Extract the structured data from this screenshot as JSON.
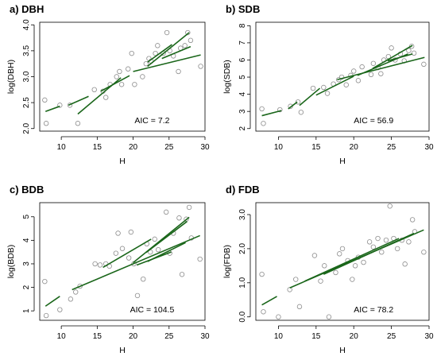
{
  "chart_data": [
    {
      "type": "scatter",
      "title": "a) DBH",
      "xlabel": "H",
      "ylabel": "log(DBH)",
      "xlim": [
        7,
        30
      ],
      "ylim": [
        1.95,
        4.05
      ],
      "xticks": [
        10,
        15,
        20,
        25,
        30
      ],
      "yticks": [
        "2.0",
        "2.5",
        "3.0",
        "3.5",
        "4.0"
      ],
      "annotation": "AIC = 7.2",
      "colors": {
        "points": "#8c8c8c",
        "fit_lines": "#1a661a"
      },
      "points": [
        [
          7.7,
          2.55
        ],
        [
          7.9,
          2.1
        ],
        [
          9.8,
          2.45
        ],
        [
          11.2,
          2.45
        ],
        [
          12.3,
          2.1
        ],
        [
          14.6,
          2.75
        ],
        [
          15.8,
          2.72
        ],
        [
          16.2,
          2.6
        ],
        [
          16.8,
          2.85
        ],
        [
          17.7,
          3.0
        ],
        [
          18.1,
          3.1
        ],
        [
          18.4,
          2.85
        ],
        [
          19.3,
          3.15
        ],
        [
          19.8,
          3.45
        ],
        [
          20.2,
          2.85
        ],
        [
          21.3,
          3.0
        ],
        [
          21.8,
          3.25
        ],
        [
          22.2,
          3.35
        ],
        [
          22.5,
          3.3
        ],
        [
          23.1,
          3.45
        ],
        [
          23.4,
          3.6
        ],
        [
          24.2,
          3.45
        ],
        [
          24.7,
          3.85
        ],
        [
          25.1,
          3.5
        ],
        [
          25.6,
          3.4
        ],
        [
          26.3,
          3.1
        ],
        [
          26.6,
          3.55
        ],
        [
          27.2,
          3.6
        ],
        [
          27.6,
          3.85
        ],
        [
          28.0,
          3.7
        ],
        [
          29.4,
          3.2
        ]
      ],
      "fit_lines": [
        [
          [
            7.8,
            2.33
          ],
          [
            9.8,
            2.43
          ]
        ],
        [
          [
            11.0,
            2.45
          ],
          [
            13.8,
            2.62
          ]
        ],
        [
          [
            12.3,
            2.28
          ],
          [
            18.3,
            2.98
          ]
        ],
        [
          [
            15.5,
            2.72
          ],
          [
            19.5,
            3.02
          ]
        ],
        [
          [
            20.0,
            3.1
          ],
          [
            29.4,
            3.42
          ]
        ],
        [
          [
            22.0,
            3.2
          ],
          [
            27.8,
            3.85
          ]
        ],
        [
          [
            22.0,
            3.28
          ],
          [
            25.4,
            3.62
          ]
        ],
        [
          [
            24.0,
            3.35
          ],
          [
            28.0,
            3.58
          ]
        ]
      ]
    },
    {
      "type": "scatter",
      "title": "b) SDB",
      "xlabel": "H",
      "ylabel": "log(SDB)",
      "xlim": [
        7,
        30
      ],
      "ylim": [
        1.85,
        8.2
      ],
      "xticks": [
        10,
        15,
        20,
        25,
        30
      ],
      "yticks": [
        "2",
        "3",
        "4",
        "5",
        "6",
        "7",
        "8"
      ],
      "annotation": "AIC = 56.9",
      "colors": {
        "points": "#8c8c8c",
        "fit_lines": "#1a661a"
      },
      "points": [
        [
          7.8,
          3.15
        ],
        [
          8.0,
          2.3
        ],
        [
          10.2,
          3.1
        ],
        [
          11.6,
          3.3
        ],
        [
          12.6,
          3.55
        ],
        [
          13.0,
          2.95
        ],
        [
          14.6,
          4.35
        ],
        [
          16.0,
          4.4
        ],
        [
          16.5,
          4.05
        ],
        [
          17.3,
          4.6
        ],
        [
          18.0,
          4.85
        ],
        [
          18.4,
          5.0
        ],
        [
          19.0,
          4.55
        ],
        [
          19.6,
          5.1
        ],
        [
          20.0,
          5.35
        ],
        [
          20.6,
          4.8
        ],
        [
          21.1,
          5.6
        ],
        [
          22.3,
          5.15
        ],
        [
          22.6,
          5.8
        ],
        [
          23.2,
          5.55
        ],
        [
          23.6,
          5.2
        ],
        [
          24.0,
          6.0
        ],
        [
          24.6,
          6.2
        ],
        [
          25.0,
          6.7
        ],
        [
          25.5,
          6.0
        ],
        [
          26.2,
          6.35
        ],
        [
          26.7,
          5.95
        ],
        [
          27.3,
          6.55
        ],
        [
          27.7,
          6.8
        ],
        [
          28.0,
          6.4
        ],
        [
          29.3,
          5.75
        ]
      ],
      "fit_lines": [
        [
          [
            7.8,
            2.75
          ],
          [
            10.4,
            3.05
          ]
        ],
        [
          [
            11.3,
            3.15
          ],
          [
            12.5,
            3.55
          ]
        ],
        [
          [
            12.8,
            3.35
          ],
          [
            15.5,
            4.35
          ]
        ],
        [
          [
            15.0,
            3.95
          ],
          [
            20.0,
            5.05
          ]
        ],
        [
          [
            17.8,
            4.85
          ],
          [
            29.4,
            6.15
          ]
        ],
        [
          [
            20.5,
            5.1
          ],
          [
            27.2,
            6.35
          ]
        ],
        [
          [
            22.5,
            5.5
          ],
          [
            27.8,
            6.85
          ]
        ],
        [
          [
            24.5,
            5.95
          ],
          [
            27.8,
            6.35
          ]
        ]
      ]
    },
    {
      "type": "scatter",
      "title": "c) BDB",
      "xlabel": "H",
      "ylabel": "log(BDB)",
      "xlim": [
        7,
        30
      ],
      "ylim": [
        0.6,
        5.6
      ],
      "xticks": [
        10,
        15,
        20,
        25,
        30
      ],
      "yticks": [
        "1",
        "2",
        "3",
        "4",
        "5"
      ],
      "annotation": "AIC = 104.5",
      "colors": {
        "points": "#8c8c8c",
        "fit_lines": "#1a661a"
      },
      "points": [
        [
          7.7,
          2.25
        ],
        [
          7.9,
          0.8
        ],
        [
          9.8,
          1.05
        ],
        [
          11.3,
          1.5
        ],
        [
          12.0,
          1.8
        ],
        [
          12.6,
          2.05
        ],
        [
          14.7,
          3.0
        ],
        [
          15.4,
          2.95
        ],
        [
          16.2,
          3.0
        ],
        [
          16.7,
          2.9
        ],
        [
          17.6,
          3.45
        ],
        [
          17.9,
          4.3
        ],
        [
          18.5,
          3.65
        ],
        [
          19.4,
          3.25
        ],
        [
          19.7,
          4.35
        ],
        [
          20.1,
          3.0
        ],
        [
          20.6,
          1.65
        ],
        [
          21.4,
          2.35
        ],
        [
          21.9,
          3.85
        ],
        [
          22.4,
          3.5
        ],
        [
          23.0,
          4.05
        ],
        [
          23.5,
          3.6
        ],
        [
          24.6,
          5.2
        ],
        [
          25.1,
          3.45
        ],
        [
          25.6,
          4.3
        ],
        [
          26.4,
          4.95
        ],
        [
          26.8,
          2.55
        ],
        [
          27.4,
          4.9
        ],
        [
          27.8,
          5.4
        ],
        [
          28.1,
          4.1
        ],
        [
          29.3,
          3.2
        ]
      ],
      "fit_lines": [
        [
          [
            7.8,
            1.2
          ],
          [
            9.8,
            1.62
          ]
        ],
        [
          [
            11.5,
            1.9
          ],
          [
            29.3,
            4.2
          ]
        ],
        [
          [
            15.8,
            2.85
          ],
          [
            22.5,
            4.05
          ]
        ],
        [
          [
            20.0,
            3.05
          ],
          [
            27.8,
            4.98
          ]
        ],
        [
          [
            21.8,
            3.48
          ],
          [
            27.5,
            4.8
          ]
        ],
        [
          [
            22.0,
            3.1
          ],
          [
            27.3,
            3.9
          ]
        ],
        [
          [
            20.5,
            2.95
          ],
          [
            25.3,
            3.5
          ]
        ]
      ]
    },
    {
      "type": "scatter",
      "title": "d) FDB",
      "xlabel": "H",
      "ylabel": "log(FDB)",
      "xlim": [
        7,
        30
      ],
      "ylim": [
        -0.1,
        3.35
      ],
      "xticks": [
        10,
        15,
        20,
        25,
        30
      ],
      "yticks": [
        "0.0",
        "1.0",
        "2.0",
        "3.0"
      ],
      "annotation": "AIC = 78.2",
      "colors": {
        "points": "#8c8c8c",
        "fit_lines": "#1a661a"
      },
      "points": [
        [
          7.8,
          1.25
        ],
        [
          8.0,
          0.15
        ],
        [
          10.0,
          0.0
        ],
        [
          11.5,
          0.8
        ],
        [
          12.3,
          1.1
        ],
        [
          12.8,
          0.3
        ],
        [
          14.8,
          1.8
        ],
        [
          15.6,
          1.05
        ],
        [
          16.1,
          1.5
        ],
        [
          16.7,
          0.0
        ],
        [
          17.6,
          1.3
        ],
        [
          18.1,
          1.85
        ],
        [
          18.5,
          2.0
        ],
        [
          19.2,
          1.65
        ],
        [
          19.8,
          1.1
        ],
        [
          20.2,
          1.5
        ],
        [
          20.6,
          1.75
        ],
        [
          21.3,
          1.6
        ],
        [
          22.1,
          2.2
        ],
        [
          22.6,
          2.05
        ],
        [
          23.2,
          2.3
        ],
        [
          23.7,
          1.9
        ],
        [
          24.3,
          2.25
        ],
        [
          24.8,
          3.25
        ],
        [
          25.3,
          2.3
        ],
        [
          25.8,
          2.0
        ],
        [
          26.4,
          2.25
        ],
        [
          26.8,
          1.55
        ],
        [
          27.3,
          2.2
        ],
        [
          27.8,
          2.85
        ],
        [
          28.1,
          2.5
        ],
        [
          29.3,
          1.9
        ]
      ],
      "fit_lines": [
        [
          [
            7.8,
            0.35
          ],
          [
            9.8,
            0.6
          ]
        ],
        [
          [
            11.5,
            0.85
          ],
          [
            29.3,
            2.55
          ]
        ],
        [
          [
            13.5,
            1.05
          ],
          [
            26.0,
            2.3
          ]
        ],
        [
          [
            16.0,
            1.25
          ],
          [
            28.0,
            2.45
          ]
        ]
      ]
    }
  ]
}
